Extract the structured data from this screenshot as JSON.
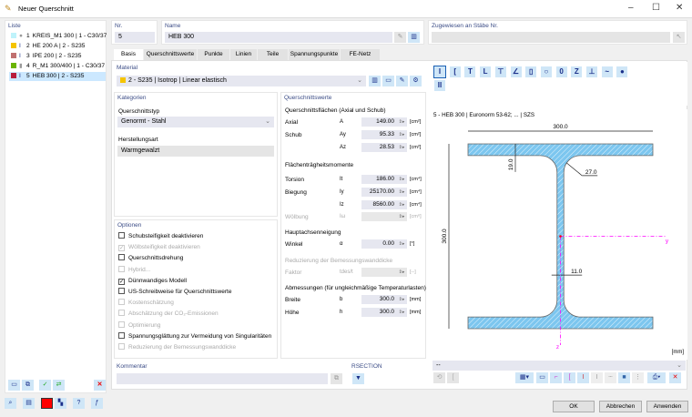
{
  "window": {
    "title": "Neuer Querschnitt"
  },
  "list": {
    "label": "Liste",
    "items": [
      {
        "no": "1",
        "text": "KREIS_M1 300 | 1 - C30/37",
        "color": "#bff3fb",
        "icon": "circle-icon"
      },
      {
        "no": "2",
        "text": "HE 200 A | 2 - S235",
        "color": "#f5c400",
        "icon": "i-beam-icon"
      },
      {
        "no": "3",
        "text": "IPE 200 | 2 - S235",
        "color": "#c07070",
        "icon": "i-beam-icon"
      },
      {
        "no": "4",
        "text": "R_M1 300/400 | 1 - C30/37",
        "color": "#6ab400",
        "icon": "rectangle-icon"
      },
      {
        "no": "5",
        "text": "HEB 300 | 2 - S235",
        "color": "#b81c3c",
        "icon": "i-beam-icon",
        "selected": true
      }
    ]
  },
  "nr": {
    "label": "Nr.",
    "value": "5"
  },
  "name": {
    "label": "Name",
    "value": "HEB 300"
  },
  "assigned": {
    "label": "Zugewiesen an Stäbe Nr.",
    "value": ""
  },
  "tabs": [
    "Basis",
    "Querschnittswerte",
    "Punkte",
    "Linien",
    "Teile",
    "Spannungspunkte",
    "FE-Netz"
  ],
  "material": {
    "label": "Material",
    "value": "2 - S235 | Isotrop | Linear elastisch",
    "color": "#f5c400"
  },
  "categories": {
    "label": "Kategorien",
    "type_label": "Querschnittstyp",
    "type_value": "Genormt - Stahl",
    "manuf_label": "Herstellungsart",
    "manuf_value": "Warmgewalzt"
  },
  "options": {
    "label": "Optionen",
    "items": [
      {
        "text": "Schubsteifigkeit deaktivieren",
        "checked": false,
        "enabled": true
      },
      {
        "text": "Wölbsteifigkeit deaktivieren",
        "checked": true,
        "enabled": false
      },
      {
        "text": "Querschnittsdrehung",
        "checked": false,
        "enabled": true
      },
      {
        "text": "Hybrid...",
        "checked": false,
        "enabled": false
      },
      {
        "text": "Dünnwandiges Modell",
        "checked": true,
        "enabled": true
      },
      {
        "text": "US-Schreibweise für Querschnittswerte",
        "checked": false,
        "enabled": true
      },
      {
        "text": "Kostenschätzung",
        "checked": false,
        "enabled": false
      },
      {
        "text": "Abschätzung der CO₂-Emissionen",
        "checked": false,
        "enabled": false
      },
      {
        "text": "Optimierung",
        "checked": false,
        "enabled": false
      },
      {
        "text": "Spannungsglättung zur Vermeidung von Singularitäten",
        "checked": false,
        "enabled": true
      },
      {
        "text": "Reduzierung der Bemessungswanddicke",
        "checked": false,
        "enabled": false
      }
    ]
  },
  "comment": {
    "label": "Kommentar",
    "value": ""
  },
  "rsection": {
    "label": "RSECTION"
  },
  "props": {
    "label": "Querschnittswerte",
    "areas_label": "Querschnittsflächen (Axial und Schub)",
    "inertia_label": "Flächenträgheitsmomente",
    "axis_label": "Hauptachsenneigung",
    "reduce_label": "Reduzierung der Bemessungswanddicke",
    "dims_label": "Abmessungen (für ungleichmäßige Temperaturlasten)",
    "rows": [
      {
        "name": "Axial",
        "sym": "A",
        "value": "149.00",
        "unit": "[cm²]",
        "enabled": true
      },
      {
        "name": "Schub",
        "sym": "Ay",
        "value": "95.33",
        "unit": "[cm²]",
        "enabled": true
      },
      {
        "name": "",
        "sym": "Az",
        "value": "28.53",
        "unit": "[cm²]",
        "enabled": true
      },
      {
        "name": "Torsion",
        "sym": "It",
        "value": "186.00",
        "unit": "[cm⁴]",
        "enabled": true
      },
      {
        "name": "Biegung",
        "sym": "Iy",
        "value": "25170.00",
        "unit": "[cm⁴]",
        "enabled": true
      },
      {
        "name": "",
        "sym": "Iz",
        "value": "8560.00",
        "unit": "[cm⁴]",
        "enabled": true
      },
      {
        "name": "Wölbung",
        "sym": "Iω",
        "value": "",
        "unit": "[cm⁶]",
        "enabled": false
      },
      {
        "name": "Winkel",
        "sym": "α",
        "value": "0.00",
        "unit": "[°]",
        "enabled": true
      },
      {
        "name": "Faktor",
        "sym": "tdes/t",
        "value": "",
        "unit": "[--]",
        "enabled": false
      },
      {
        "name": "Breite",
        "sym": "b",
        "value": "300.0",
        "unit": "[mm]",
        "enabled": true
      },
      {
        "name": "Höhe",
        "sym": "h",
        "value": "300.0",
        "unit": "[mm]",
        "enabled": true
      }
    ]
  },
  "preview": {
    "title": "5 - HEB 300 | Euronorm 53-62; ... | SZS",
    "unit": "[mm]",
    "select_value": "--",
    "dims": {
      "b": "300.0",
      "h": "300.0",
      "tf": "19.0",
      "tw": "11.0",
      "r": "27.0"
    },
    "axis_y": "y",
    "axis_z": "z",
    "fill": "#7cc6ef",
    "axis_color": "#ff00ff"
  },
  "buttons": {
    "ok": "OK",
    "cancel": "Abbrechen",
    "apply": "Anwenden"
  }
}
